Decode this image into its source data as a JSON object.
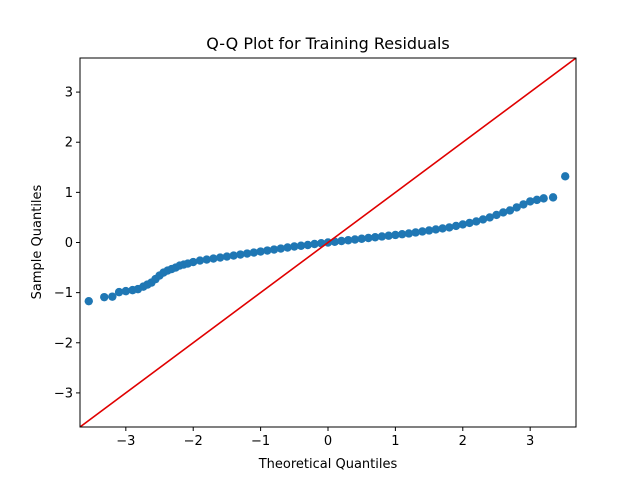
{
  "chart_data": {
    "type": "scatter",
    "title": "Q-Q Plot for Training Residuals",
    "xlabel": "Theoretical Quantiles",
    "ylabel": "Sample Quantiles",
    "xlim": [
      -3.68,
      3.68
    ],
    "ylim": [
      -3.68,
      3.68
    ],
    "xticks": [
      -3,
      -2,
      -1,
      0,
      1,
      2,
      3
    ],
    "yticks": [
      -3,
      -2,
      -1,
      0,
      1,
      2,
      3
    ],
    "grid": false,
    "reference_line": {
      "slope": 1,
      "intercept": 0,
      "color": "#e00000"
    },
    "series": [
      {
        "color": "#1f77b4",
        "points": [
          [
            -3.55,
            -1.17
          ],
          [
            -3.32,
            -1.09
          ],
          [
            -3.2,
            -1.08
          ],
          [
            -3.1,
            -0.99
          ],
          [
            -3.0,
            -0.97
          ],
          [
            -2.9,
            -0.95
          ],
          [
            -2.82,
            -0.93
          ],
          [
            -2.74,
            -0.88
          ],
          [
            -2.68,
            -0.84
          ],
          [
            -2.62,
            -0.8
          ],
          [
            -2.56,
            -0.73
          ],
          [
            -2.5,
            -0.66
          ],
          [
            -2.44,
            -0.6
          ],
          [
            -2.38,
            -0.56
          ],
          [
            -2.32,
            -0.53
          ],
          [
            -2.26,
            -0.5
          ],
          [
            -2.2,
            -0.46
          ],
          [
            -2.14,
            -0.44
          ],
          [
            -2.08,
            -0.42
          ],
          [
            -2.0,
            -0.39
          ],
          [
            -1.9,
            -0.36
          ],
          [
            -1.8,
            -0.34
          ],
          [
            -1.7,
            -0.32
          ],
          [
            -1.6,
            -0.3
          ],
          [
            -1.5,
            -0.28
          ],
          [
            -1.4,
            -0.26
          ],
          [
            -1.3,
            -0.24
          ],
          [
            -1.2,
            -0.22
          ],
          [
            -1.1,
            -0.2
          ],
          [
            -1.0,
            -0.18
          ],
          [
            -0.9,
            -0.16
          ],
          [
            -0.8,
            -0.14
          ],
          [
            -0.7,
            -0.12
          ],
          [
            -0.6,
            -0.1
          ],
          [
            -0.5,
            -0.08
          ],
          [
            -0.4,
            -0.065
          ],
          [
            -0.3,
            -0.05
          ],
          [
            -0.2,
            -0.03
          ],
          [
            -0.1,
            -0.015
          ],
          [
            0.0,
            0.0
          ],
          [
            0.1,
            0.015
          ],
          [
            0.2,
            0.03
          ],
          [
            0.3,
            0.045
          ],
          [
            0.4,
            0.06
          ],
          [
            0.5,
            0.075
          ],
          [
            0.6,
            0.09
          ],
          [
            0.7,
            0.105
          ],
          [
            0.8,
            0.12
          ],
          [
            0.9,
            0.135
          ],
          [
            1.0,
            0.15
          ],
          [
            1.1,
            0.165
          ],
          [
            1.2,
            0.18
          ],
          [
            1.3,
            0.2
          ],
          [
            1.4,
            0.22
          ],
          [
            1.5,
            0.24
          ],
          [
            1.6,
            0.26
          ],
          [
            1.7,
            0.28
          ],
          [
            1.8,
            0.3
          ],
          [
            1.9,
            0.33
          ],
          [
            2.0,
            0.36
          ],
          [
            2.1,
            0.39
          ],
          [
            2.2,
            0.42
          ],
          [
            2.3,
            0.46
          ],
          [
            2.4,
            0.5
          ],
          [
            2.5,
            0.55
          ],
          [
            2.6,
            0.6
          ],
          [
            2.7,
            0.64
          ],
          [
            2.8,
            0.7
          ],
          [
            2.9,
            0.76
          ],
          [
            3.0,
            0.82
          ],
          [
            3.1,
            0.85
          ],
          [
            3.2,
            0.88
          ],
          [
            3.34,
            0.9
          ],
          [
            3.52,
            1.32
          ]
        ]
      }
    ]
  }
}
